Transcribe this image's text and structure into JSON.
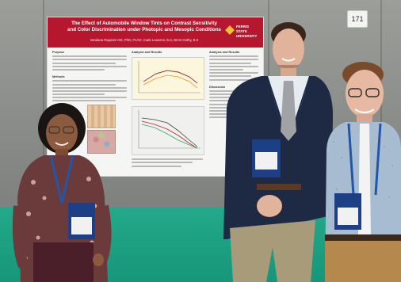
{
  "booth": {
    "number": "171"
  },
  "poster": {
    "title": "The Effect of Automobile Window Tints on Contrast Sensitivity and Color Discrimination under Photopic and Mesopic Conditions",
    "authors": "Vandana Rajaram OD, PhD, FAAO, Cade Leavens, B.S, Brent Guthy, B.S",
    "university_logo_text": "FERRIS STATE UNIVERSITY",
    "section_headings": [
      "Purpose",
      "Methods",
      "Analysis and Results",
      "Analysis and Results",
      "Discussion"
    ]
  },
  "colors": {
    "poster_header": "#b5172f",
    "logo_accent": "#f2c230",
    "carpet": "#1fa285",
    "wall": "#8d8f8c",
    "left_suit": "#1e2a44"
  }
}
